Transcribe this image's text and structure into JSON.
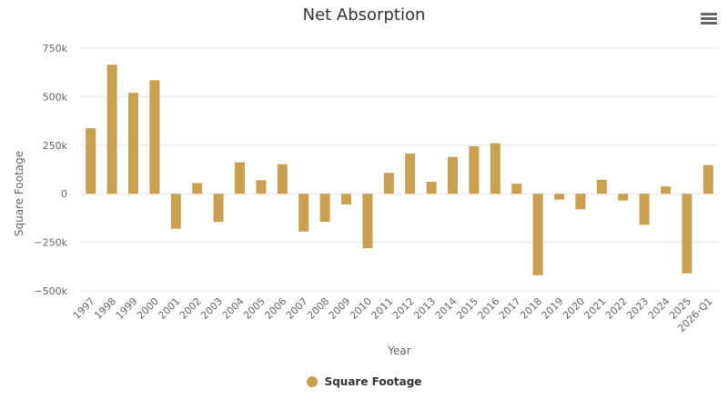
{
  "chart_data": {
    "type": "bar",
    "title": "Net Absorption",
    "xlabel": "Year",
    "ylabel": "Square Footage",
    "ylim": [
      -500000,
      750000
    ],
    "yticks": [
      {
        "value": 750000,
        "label": "750k"
      },
      {
        "value": 500000,
        "label": "500k"
      },
      {
        "value": 250000,
        "label": "250k"
      },
      {
        "value": 0,
        "label": "0"
      },
      {
        "value": -250000,
        "label": "−250k"
      },
      {
        "value": -500000,
        "label": "−500k"
      }
    ],
    "grid": true,
    "legend_position": "bottom",
    "categories": [
      "1997",
      "1998",
      "1999",
      "2000",
      "2001",
      "2002",
      "2003",
      "2004",
      "2005",
      "2006",
      "2007",
      "2008",
      "2009",
      "2010",
      "2011",
      "2012",
      "2013",
      "2014",
      "2015",
      "2016",
      "2017",
      "2018",
      "2019",
      "2020",
      "2021",
      "2022",
      "2023",
      "2024",
      "2025",
      "2026-Q1"
    ],
    "series": [
      {
        "name": "Square Footage",
        "color": "#c9a050",
        "values": [
          338000,
          665000,
          520000,
          585000,
          -180000,
          55000,
          -145000,
          162000,
          70000,
          152000,
          -195000,
          -145000,
          -55000,
          -280000,
          108000,
          207000,
          62000,
          190000,
          245000,
          260000,
          52000,
          -420000,
          -30000,
          -80000,
          72000,
          -35000,
          -160000,
          38000,
          -410000,
          148000
        ]
      }
    ]
  },
  "ui": {
    "menu_icon": "hamburger-menu-icon"
  }
}
